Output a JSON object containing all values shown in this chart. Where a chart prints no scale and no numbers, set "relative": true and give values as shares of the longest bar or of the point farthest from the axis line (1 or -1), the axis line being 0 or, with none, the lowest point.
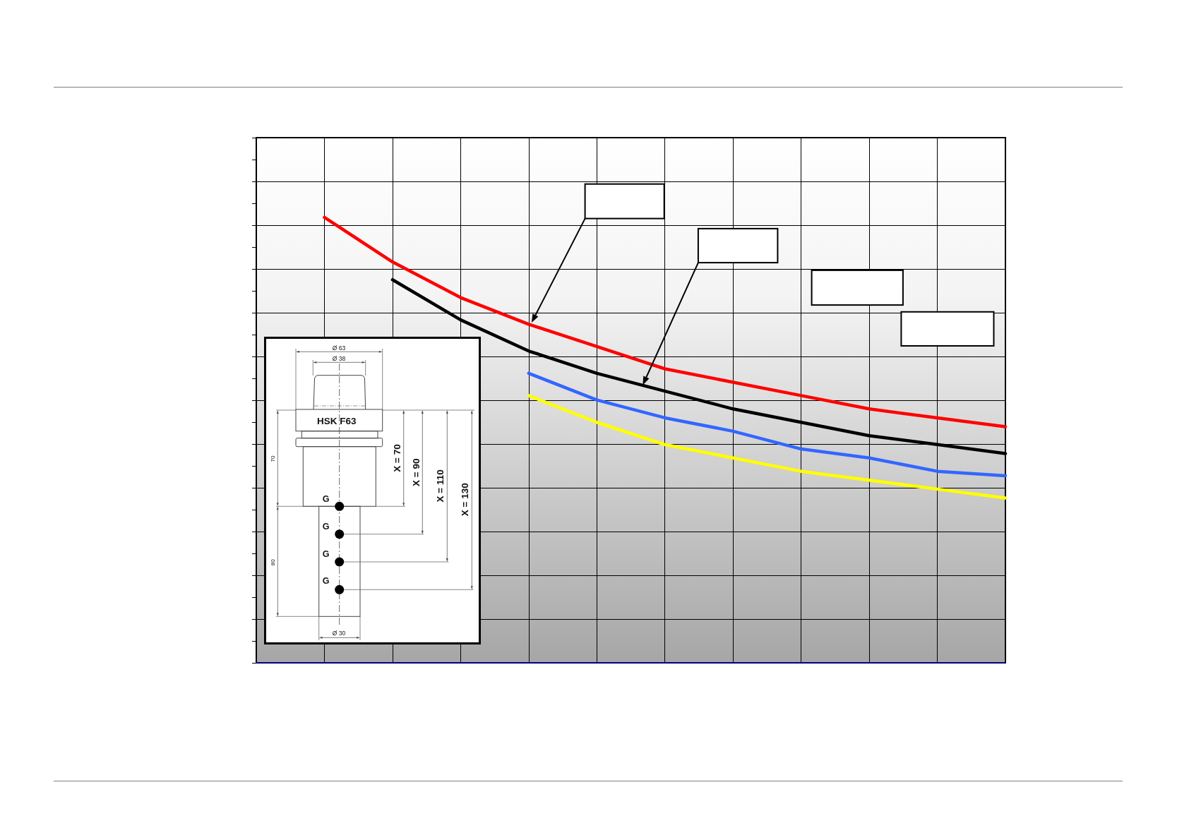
{
  "chart_data": {
    "type": "line",
    "relative": true,
    "categories": [
      null,
      null,
      null,
      null,
      null,
      null,
      null,
      null,
      null,
      null,
      null,
      null
    ],
    "series": [
      {
        "color": "#ff0000",
        "values": [
          null,
          1,
          0.9,
          0.82,
          0.76,
          0.71,
          0.66,
          0.63,
          0.6,
          0.57,
          0.55,
          0.53
        ]
      },
      {
        "color": "#000000",
        "values": [
          null,
          null,
          0.86,
          0.77,
          0.7,
          0.65,
          0.61,
          0.57,
          0.54,
          0.51,
          0.49,
          0.47
        ]
      },
      {
        "color": "#3366ff",
        "values": [
          null,
          null,
          null,
          null,
          0.65,
          0.59,
          0.55,
          0.52,
          0.48,
          0.46,
          0.43,
          0.42
        ]
      },
      {
        "color": "#ffff00",
        "values": [
          null,
          null,
          null,
          null,
          0.6,
          0.54,
          0.49,
          0.46,
          0.43,
          0.41,
          0.39,
          0.37
        ]
      }
    ],
    "grid": true,
    "line_style": "solid",
    "annotations": [
      "Ø 63",
      "Ø 38",
      "HSK F63",
      "70",
      "80",
      "G",
      "G",
      "G",
      "G",
      "X = 70",
      "X = 90",
      "X = 110",
      "X = 130",
      "Ø 30"
    ]
  }
}
